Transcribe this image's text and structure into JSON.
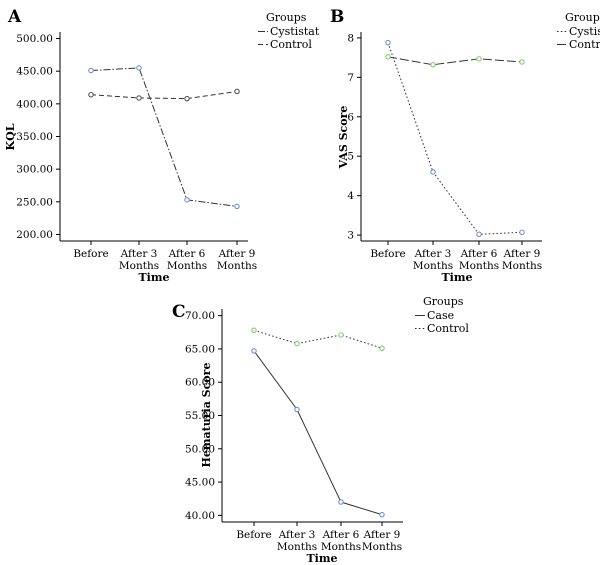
{
  "chart_data": [
    {
      "panel": "A",
      "type": "line",
      "categories": [
        "Before",
        "After 3\nMonths",
        "After 6\nMonths",
        "After 9\nMonths"
      ],
      "xlabel": "Time",
      "ylabel": "KQL",
      "ylim": [
        190,
        510
      ],
      "yticks": [
        "200.00",
        "250.00",
        "300.00",
        "350.00",
        "400.00",
        "450.00",
        "500.00"
      ],
      "ytick_values": [
        200,
        250,
        300,
        350,
        400,
        450,
        500
      ],
      "legend_title": "Groups",
      "legend_placement": "top-right",
      "grid": false,
      "series": [
        {
          "name": "Cystistat",
          "values": [
            451,
            455,
            253,
            243
          ],
          "dash": "dashdot",
          "marker_color": "#6f8fdc"
        },
        {
          "name": "Control",
          "values": [
            414,
            409,
            408,
            419
          ],
          "dash": "dash",
          "marker_color": "#555555"
        }
      ]
    },
    {
      "panel": "B",
      "type": "line",
      "categories": [
        "Before",
        "After 3\nMonths",
        "After 6\nMonths",
        "After 9\nMonths"
      ],
      "xlabel": "Time",
      "ylabel": "VAS Score",
      "ylim": [
        2.85,
        8.15
      ],
      "yticks": [
        "3",
        "4",
        "5",
        "6",
        "7",
        "8"
      ],
      "ytick_values": [
        3,
        4,
        5,
        6,
        7,
        8
      ],
      "legend_title": "Groups",
      "legend_placement": "top-right",
      "grid": false,
      "series": [
        {
          "name": "Cystistat",
          "values": [
            7.88,
            4.6,
            3.02,
            3.07
          ],
          "dash": "dot",
          "marker_color": "#6f8fdc"
        },
        {
          "name": "Control",
          "values": [
            7.52,
            7.32,
            7.47,
            7.39
          ],
          "dash": "longdash",
          "marker_color": "#7fcf6a"
        }
      ]
    },
    {
      "panel": "C",
      "type": "line",
      "categories": [
        "Before",
        "After 3\nMonths",
        "After 6\nMonths",
        "After 9\nMonths"
      ],
      "xlabel": "Time",
      "ylabel": "Hematuria Score",
      "ylim": [
        39,
        71
      ],
      "yticks": [
        "40.00",
        "45.00",
        "50.00",
        "55.00",
        "60.00",
        "65.00",
        "70.00"
      ],
      "ytick_values": [
        40,
        45,
        50,
        55,
        60,
        65,
        70
      ],
      "legend_title": "Groups",
      "legend_placement": "top-right",
      "grid": false,
      "series": [
        {
          "name": "Case",
          "values": [
            64.7,
            55.9,
            42.0,
            40.1
          ],
          "dash": "solid",
          "marker_color": "#6f8fdc"
        },
        {
          "name": "Control",
          "values": [
            67.8,
            65.8,
            67.1,
            65.1
          ],
          "dash": "dot",
          "marker_color": "#7fcf6a"
        }
      ]
    }
  ]
}
